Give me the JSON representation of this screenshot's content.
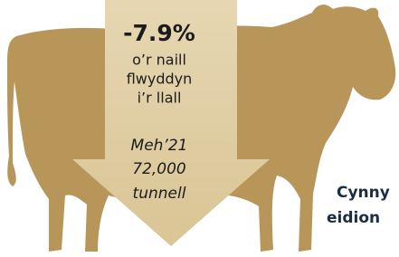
{
  "headline": {
    "change": "-7.9%",
    "lines": [
      "o’r naill",
      "flwyddyn",
      "i’r llall"
    ]
  },
  "period": {
    "label": "Meh’21",
    "amount": "72,000",
    "unit": "tunnell"
  },
  "caption": [
    "Cynny",
    "eidion"
  ]
}
